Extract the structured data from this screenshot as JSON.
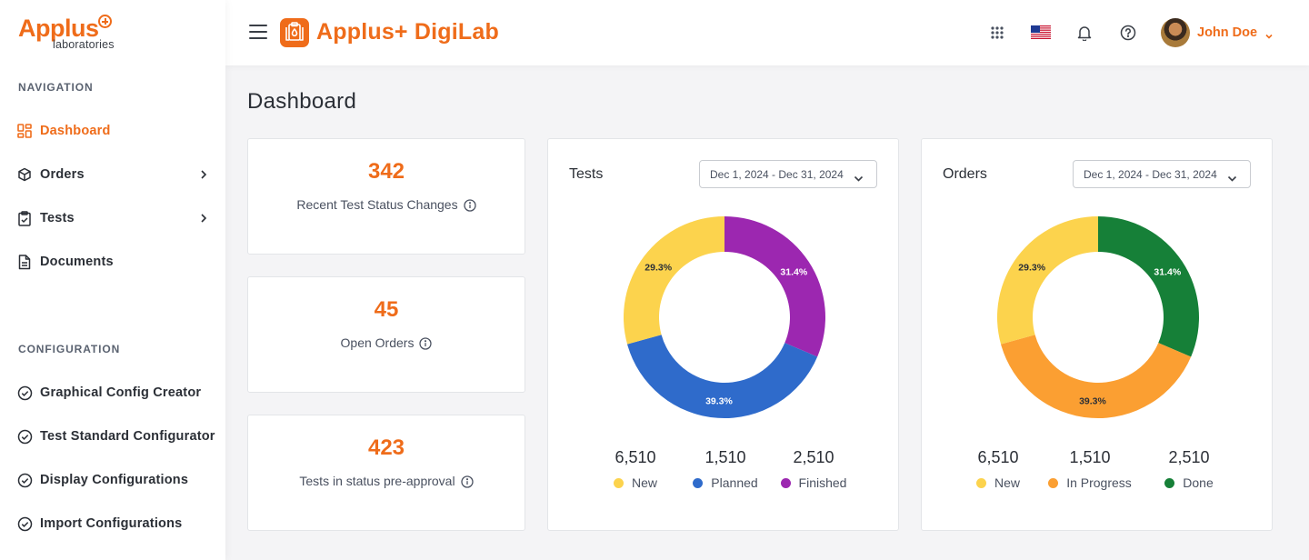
{
  "brand": {
    "logo_word": "Applus",
    "logo_sub": "laboratories",
    "accent": "#ef6c1a"
  },
  "header": {
    "app_title": "Applus+ DigiLab",
    "user_name": "John Doe"
  },
  "sidebar": {
    "nav_heading": "NAVIGATION",
    "nav_items": [
      {
        "label": "Dashboard",
        "icon": "dashboard-icon",
        "active": true
      },
      {
        "label": "Orders",
        "icon": "cube-icon",
        "has_submenu": true
      },
      {
        "label": "Tests",
        "icon": "clipboard-check-icon",
        "has_submenu": true
      },
      {
        "label": "Documents",
        "icon": "document-icon"
      }
    ],
    "config_heading": "CONFIGURATION",
    "config_items": [
      {
        "label": "Graphical Config Creator",
        "icon": "check-circle-icon"
      },
      {
        "label": "Test Standard Configurator",
        "icon": "check-circle-icon"
      },
      {
        "label": "Display Configurations",
        "icon": "check-circle-icon"
      },
      {
        "label": "Import Configurations",
        "icon": "check-circle-icon"
      }
    ]
  },
  "main": {
    "title": "Dashboard",
    "stats": [
      {
        "value": "342",
        "label": "Recent Test Status Changes"
      },
      {
        "value": "45",
        "label": "Open Orders"
      },
      {
        "value": "423",
        "label": "Tests in status pre-approval"
      }
    ]
  },
  "chart_data": [
    {
      "type": "pie",
      "title": "Tests",
      "date_range": "Dec 1, 2024 - Dec 31, 2024",
      "categories": [
        "Finished",
        "Planned",
        "New"
      ],
      "values": [
        31.4,
        39.3,
        29.3
      ],
      "value_labels": [
        "31.4%",
        "39.3%",
        "29.3%"
      ],
      "colors": [
        "#9c27b0",
        "#2f6bcb",
        "#fcd34d"
      ],
      "legend": [
        {
          "count": "6,510",
          "label": "New",
          "color": "#fcd34d"
        },
        {
          "count": "1,510",
          "label": "Planned",
          "color": "#2f6bcb"
        },
        {
          "count": "2,510",
          "label": "Finished",
          "color": "#9c27b0"
        }
      ]
    },
    {
      "type": "pie",
      "title": "Orders",
      "date_range": "Dec 1, 2024 - Dec 31, 2024",
      "categories": [
        "Done",
        "In Progress",
        "New"
      ],
      "values": [
        31.4,
        39.3,
        29.3
      ],
      "value_labels": [
        "31.4%",
        "39.3%",
        "29.3%"
      ],
      "colors": [
        "#168038",
        "#fb9f32",
        "#fcd34d"
      ],
      "legend": [
        {
          "count": "6,510",
          "label": "New",
          "color": "#fcd34d"
        },
        {
          "count": "1,510",
          "label": "In Progress",
          "color": "#fb9f32"
        },
        {
          "count": "2,510",
          "label": "Done",
          "color": "#168038"
        }
      ]
    }
  ]
}
